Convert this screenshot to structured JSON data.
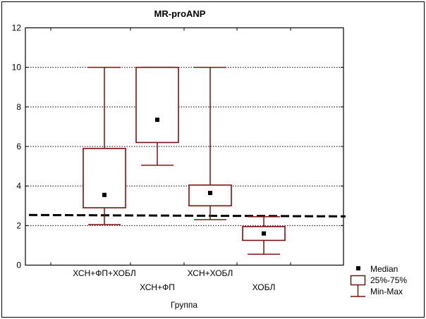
{
  "chart_data": {
    "type": "box",
    "title": "MR-proANP",
    "xlabel": "Группа",
    "ylabel": "",
    "ylim": [
      0,
      12
    ],
    "yticks": [
      "0",
      "2",
      "4",
      "6",
      "8",
      "10",
      "12"
    ],
    "grid": "horizontal-dotted",
    "categories": [
      "ХСН+ФП+ХОБЛ",
      "ХСН+ФП",
      "ХСН+ХОБЛ",
      "ХОБЛ"
    ],
    "series": [
      {
        "min": 2.05,
        "q1": 2.9,
        "median": 3.55,
        "q3": 5.9,
        "max": 10.0
      },
      {
        "min": 5.05,
        "q1": 6.2,
        "median": 7.35,
        "q3": 10.0,
        "max": 10.0
      },
      {
        "min": 2.3,
        "q1": 3.0,
        "median": 3.65,
        "q3": 4.05,
        "max": 10.0
      },
      {
        "min": 0.55,
        "q1": 1.25,
        "median": 1.6,
        "q3": 1.95,
        "max": 2.45
      }
    ],
    "reference_line": {
      "value": 2.5,
      "style": "dashed"
    },
    "legend": {
      "placement": "bottom-right",
      "items": [
        {
          "label": "Median",
          "kind": "median-marker"
        },
        {
          "label": "25%-75%",
          "kind": "box"
        },
        {
          "label": "Min-Max",
          "kind": "whisker"
        }
      ]
    },
    "colors": {
      "box": "#7a1212",
      "median": "#000000",
      "grid": "#000000",
      "reference": "#000000"
    }
  }
}
